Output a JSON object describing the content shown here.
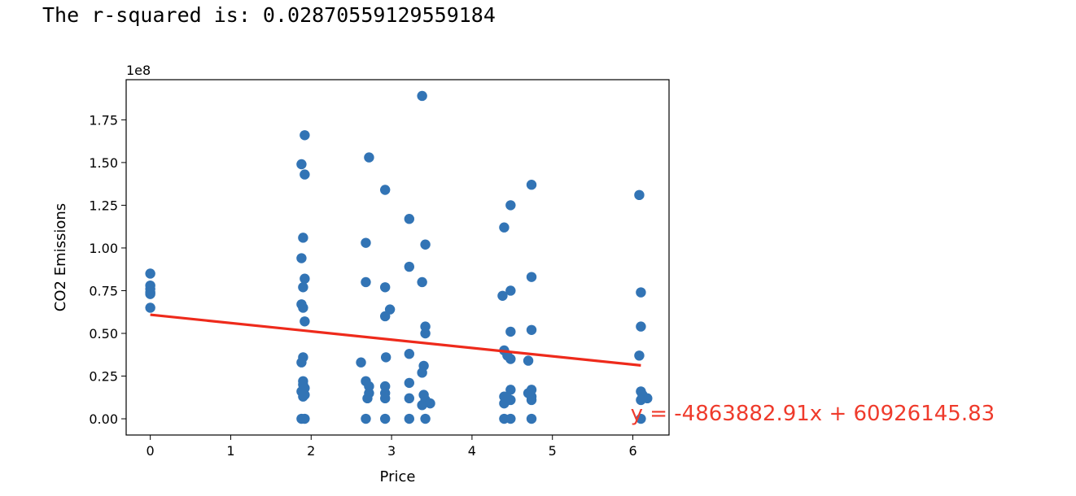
{
  "output": {
    "rsquared_text": "The r-squared is: 0.028705591295591​84"
  },
  "chart_data": {
    "type": "scatter",
    "xlabel": "Price",
    "ylabel": "CO2 Emissions",
    "offset_label": "1e8",
    "xlim": [
      -0.3,
      6.45
    ],
    "ylim": [
      -0.095,
      1.985
    ],
    "x_ticks": [
      0,
      1,
      2,
      3,
      4,
      5,
      6
    ],
    "x_tick_labels": [
      "0",
      "1",
      "2",
      "3",
      "4",
      "5",
      "6"
    ],
    "y_ticks": [
      0.0,
      0.25,
      0.5,
      0.75,
      1.0,
      1.25,
      1.5,
      1.75
    ],
    "y_tick_labels": [
      "0.00",
      "0.25",
      "0.50",
      "0.75",
      "1.00",
      "1.25",
      "1.50",
      "1.75"
    ],
    "grid": false,
    "colors": {
      "points": "#3274b5",
      "regression": "#ee2a1b",
      "annotation": "#ef3b2c"
    },
    "points": [
      [
        0,
        0.85
      ],
      [
        0,
        0.78
      ],
      [
        0,
        0.76
      ],
      [
        0,
        0.74
      ],
      [
        0,
        0.73
      ],
      [
        0,
        0.65
      ],
      [
        1.88,
        1.49
      ],
      [
        1.92,
        1.66
      ],
      [
        1.92,
        1.43
      ],
      [
        1.9,
        1.06
      ],
      [
        1.88,
        0.94
      ],
      [
        1.92,
        0.82
      ],
      [
        1.9,
        0.77
      ],
      [
        1.88,
        0.67
      ],
      [
        1.9,
        0.65
      ],
      [
        1.92,
        0.57
      ],
      [
        1.9,
        0.36
      ],
      [
        1.88,
        0.33
      ],
      [
        1.9,
        0.22
      ],
      [
        1.9,
        0.2
      ],
      [
        1.92,
        0.18
      ],
      [
        1.88,
        0.16
      ],
      [
        1.92,
        0.14
      ],
      [
        1.9,
        0.13
      ],
      [
        1.88,
        0.0
      ],
      [
        1.92,
        0.0
      ],
      [
        2.72,
        1.53
      ],
      [
        2.68,
        1.03
      ],
      [
        2.68,
        0.8
      ],
      [
        2.62,
        0.33
      ],
      [
        2.68,
        0.22
      ],
      [
        2.72,
        0.19
      ],
      [
        2.72,
        0.15
      ],
      [
        2.7,
        0.12
      ],
      [
        2.68,
        0.0
      ],
      [
        2.92,
        1.34
      ],
      [
        2.92,
        0.77
      ],
      [
        2.92,
        0.6
      ],
      [
        2.98,
        0.64
      ],
      [
        2.93,
        0.36
      ],
      [
        2.92,
        0.19
      ],
      [
        2.92,
        0.15
      ],
      [
        2.92,
        0.12
      ],
      [
        2.92,
        0.0
      ],
      [
        3.22,
        1.17
      ],
      [
        3.22,
        0.89
      ],
      [
        3.22,
        0.38
      ],
      [
        3.22,
        0.21
      ],
      [
        3.22,
        0.12
      ],
      [
        3.22,
        0.0
      ],
      [
        3.38,
        1.89
      ],
      [
        3.42,
        1.02
      ],
      [
        3.38,
        0.8
      ],
      [
        3.42,
        0.54
      ],
      [
        3.42,
        0.5
      ],
      [
        3.4,
        0.31
      ],
      [
        3.38,
        0.27
      ],
      [
        3.4,
        0.14
      ],
      [
        3.42,
        0.11
      ],
      [
        3.48,
        0.09
      ],
      [
        3.38,
        0.08
      ],
      [
        3.42,
        0.0
      ],
      [
        4.4,
        1.12
      ],
      [
        4.48,
        1.25
      ],
      [
        4.48,
        0.75
      ],
      [
        4.38,
        0.72
      ],
      [
        4.48,
        0.51
      ],
      [
        4.4,
        0.4
      ],
      [
        4.44,
        0.37
      ],
      [
        4.48,
        0.35
      ],
      [
        4.48,
        0.17
      ],
      [
        4.4,
        0.13
      ],
      [
        4.44,
        0.12
      ],
      [
        4.4,
        0.09
      ],
      [
        4.48,
        0.11
      ],
      [
        4.4,
        0.0
      ],
      [
        4.48,
        0.0
      ],
      [
        4.74,
        1.37
      ],
      [
        4.74,
        0.83
      ],
      [
        4.74,
        0.52
      ],
      [
        4.7,
        0.34
      ],
      [
        4.74,
        0.17
      ],
      [
        4.7,
        0.15
      ],
      [
        4.74,
        0.13
      ],
      [
        4.74,
        0.11
      ],
      [
        4.74,
        0.0
      ],
      [
        6.08,
        1.31
      ],
      [
        6.1,
        0.74
      ],
      [
        6.1,
        0.54
      ],
      [
        6.08,
        0.37
      ],
      [
        6.1,
        0.16
      ],
      [
        6.12,
        0.14
      ],
      [
        6.18,
        0.12
      ],
      [
        6.1,
        0.11
      ],
      [
        6.1,
        0.0
      ]
    ],
    "regression": {
      "slope": -0.0486388291,
      "intercept": 0.6092614583,
      "x_range": [
        0,
        6.1
      ]
    },
    "annotation": {
      "text": "y = -4863882.91x + 60926145.83",
      "x": 5.97,
      "y": -0.01
    }
  }
}
